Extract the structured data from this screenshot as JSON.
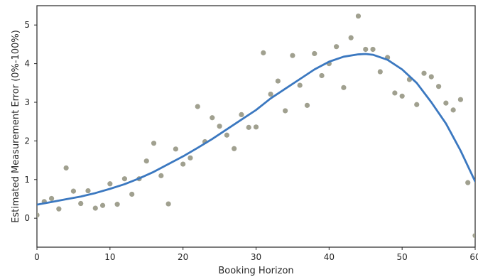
{
  "chart_data": {
    "type": "scatter",
    "title": "",
    "xlabel": "Booking Horizon",
    "ylabel": "Estimated Measurement Error (0%-100%)",
    "xlim": [
      0,
      60
    ],
    "ylim": [
      -0.75,
      5.5
    ],
    "xticks": [
      0,
      10,
      20,
      30,
      40,
      50,
      60
    ],
    "yticks": [
      0,
      1,
      2,
      3,
      4,
      5
    ],
    "grid": false,
    "legend": "none",
    "colors": {
      "points": "#a0a08f",
      "fit_line": "#3b78c0",
      "axes": "#262626",
      "background": "#ffffff"
    },
    "series": [
      {
        "kind": "scatter",
        "x": [
          0,
          1,
          2,
          3,
          4,
          5,
          6,
          7,
          8,
          9,
          10,
          11,
          12,
          13,
          14,
          15,
          16,
          17,
          18,
          19,
          20,
          21,
          22,
          23,
          24,
          25,
          26,
          27,
          28,
          29,
          30,
          31,
          32,
          33,
          34,
          35,
          36,
          37,
          38,
          39,
          40,
          41,
          42,
          43,
          44,
          45,
          46,
          47,
          48,
          49,
          50,
          51,
          52,
          53,
          54,
          55,
          56,
          57,
          58,
          59,
          60
        ],
        "y": [
          0.08,
          0.43,
          0.51,
          0.24,
          1.3,
          0.7,
          0.38,
          0.71,
          0.26,
          0.33,
          0.89,
          0.36,
          1.02,
          0.62,
          1.02,
          1.48,
          1.94,
          1.1,
          0.37,
          1.79,
          1.4,
          1.56,
          2.89,
          1.98,
          2.6,
          2.38,
          2.15,
          1.8,
          2.68,
          2.35,
          2.36,
          4.28,
          3.21,
          3.55,
          2.78,
          4.21,
          3.44,
          2.92,
          4.26,
          3.69,
          4.0,
          4.44,
          3.38,
          4.67,
          5.23,
          4.37,
          4.37,
          3.79,
          4.16,
          3.24,
          3.16,
          3.59,
          2.94,
          3.75,
          3.66,
          3.41,
          2.98,
          2.8,
          3.07,
          0.92,
          -0.45
        ]
      },
      {
        "kind": "line",
        "x": [
          0,
          2,
          4,
          6,
          8,
          10,
          12,
          14,
          16,
          18,
          20,
          22,
          24,
          26,
          28,
          30,
          32,
          34,
          36,
          38,
          40,
          42,
          44,
          45,
          46,
          48,
          50,
          52,
          54,
          56,
          58,
          60
        ],
        "y": [
          0.35,
          0.42,
          0.49,
          0.56,
          0.65,
          0.76,
          0.88,
          1.03,
          1.2,
          1.4,
          1.6,
          1.82,
          2.05,
          2.3,
          2.55,
          2.8,
          3.1,
          3.35,
          3.6,
          3.85,
          4.05,
          4.18,
          4.24,
          4.25,
          4.23,
          4.1,
          3.85,
          3.5,
          3.0,
          2.45,
          1.75,
          0.95
        ]
      }
    ]
  }
}
